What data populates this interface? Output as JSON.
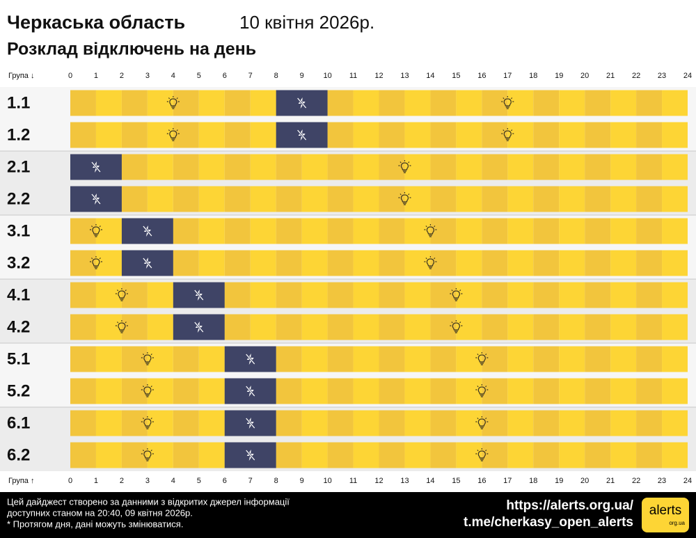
{
  "chart_data": {
    "type": "gantt",
    "title": "Черкаська область",
    "date": "10 квітня 2026р.",
    "subtitle": "Розклад відключень на день",
    "axis_label_top": "Група ↓",
    "axis_label_bottom": "Група ↑",
    "categories": [
      "1.1",
      "1.2",
      "2.1",
      "2.2",
      "3.1",
      "3.2",
      "4.1",
      "4.2",
      "5.1",
      "5.2",
      "6.1",
      "6.2"
    ],
    "outages": [
      [
        8,
        10
      ],
      [
        8,
        10
      ],
      [
        0,
        2
      ],
      [
        0,
        2
      ],
      [
        2,
        4
      ],
      [
        2,
        4
      ],
      [
        4,
        6
      ],
      [
        4,
        6
      ],
      [
        6,
        8
      ],
      [
        6,
        8
      ],
      [
        6,
        8
      ],
      [
        6,
        8
      ]
    ],
    "outage_color": "#3f4466",
    "on_colors": [
      "#f2c53d",
      "#fdd535"
    ],
    "xlim": [
      0,
      24
    ],
    "xticks": [
      0,
      1,
      2,
      3,
      4,
      5,
      6,
      7,
      8,
      9,
      10,
      11,
      12,
      13,
      14,
      15,
      16,
      17,
      18,
      19,
      20,
      21,
      22,
      23,
      24
    ]
  },
  "footer": {
    "notes": [
      "Цей дайджест створено за данними з відкритих джерел інформації",
      "доступних станом на 20:40, 09 квітня 2026р.",
      "* Протягом дня, дані можуть змінюватися."
    ],
    "links": [
      "https://alerts.org.ua/",
      "t.me/cherkasy_open_alerts"
    ],
    "logo": {
      "name": "alerts",
      "domain": "org.ua"
    }
  }
}
